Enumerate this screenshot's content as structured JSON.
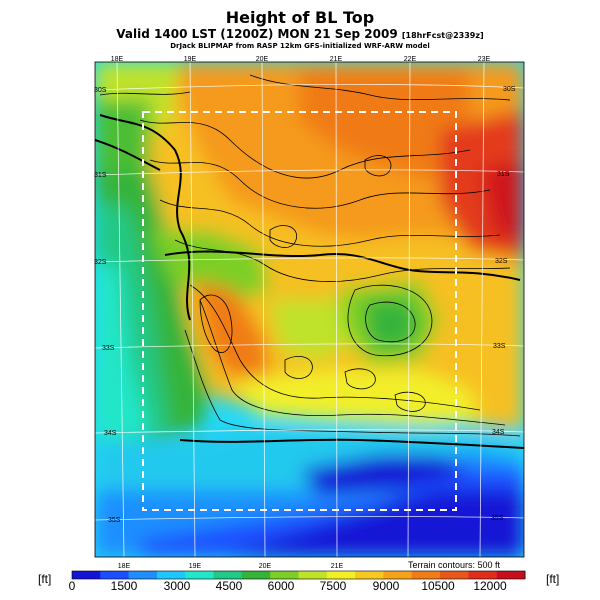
{
  "header": {
    "title": "Height of BL Top",
    "subtitle_main": "Valid 1400 LST (1200Z) MON 21 Sep 2009",
    "subtitle_small": "[18hrFcst@2339z]",
    "credit": "DrJack BLIPMAP from RASP 12km GFS-initialized WRF-ARW model"
  },
  "map": {
    "lon_labels_top": [
      "18E",
      "19E",
      "20E",
      "21E",
      "22E",
      "23E"
    ],
    "lon_labels_bottom": [
      "18E",
      "19E",
      "20E",
      "21E"
    ],
    "lat_labels_left": [
      "30S",
      "31S",
      "32S",
      "33S",
      "34S",
      "35S"
    ],
    "lat_labels_right": [
      "30S",
      "31S",
      "32S",
      "33S",
      "34S",
      "35S"
    ],
    "terrain_note": "Terrain contours: 500 ft"
  },
  "colorbar": {
    "unit_left": "[ft]",
    "unit_right": "[ft]",
    "tick_labels": [
      "0",
      "1500",
      "3000",
      "4500",
      "6000",
      "7500",
      "9000",
      "10500",
      "12000"
    ],
    "colors": [
      "#1515d6",
      "#1a4fff",
      "#1f8fff",
      "#20c7ff",
      "#22e6c8",
      "#20c985",
      "#35b43a",
      "#7ccf28",
      "#bfe22a",
      "#f2ef29",
      "#f7c722",
      "#f6a21b",
      "#f07c18",
      "#e8571a",
      "#e02e1c",
      "#c50f1d"
    ]
  }
}
